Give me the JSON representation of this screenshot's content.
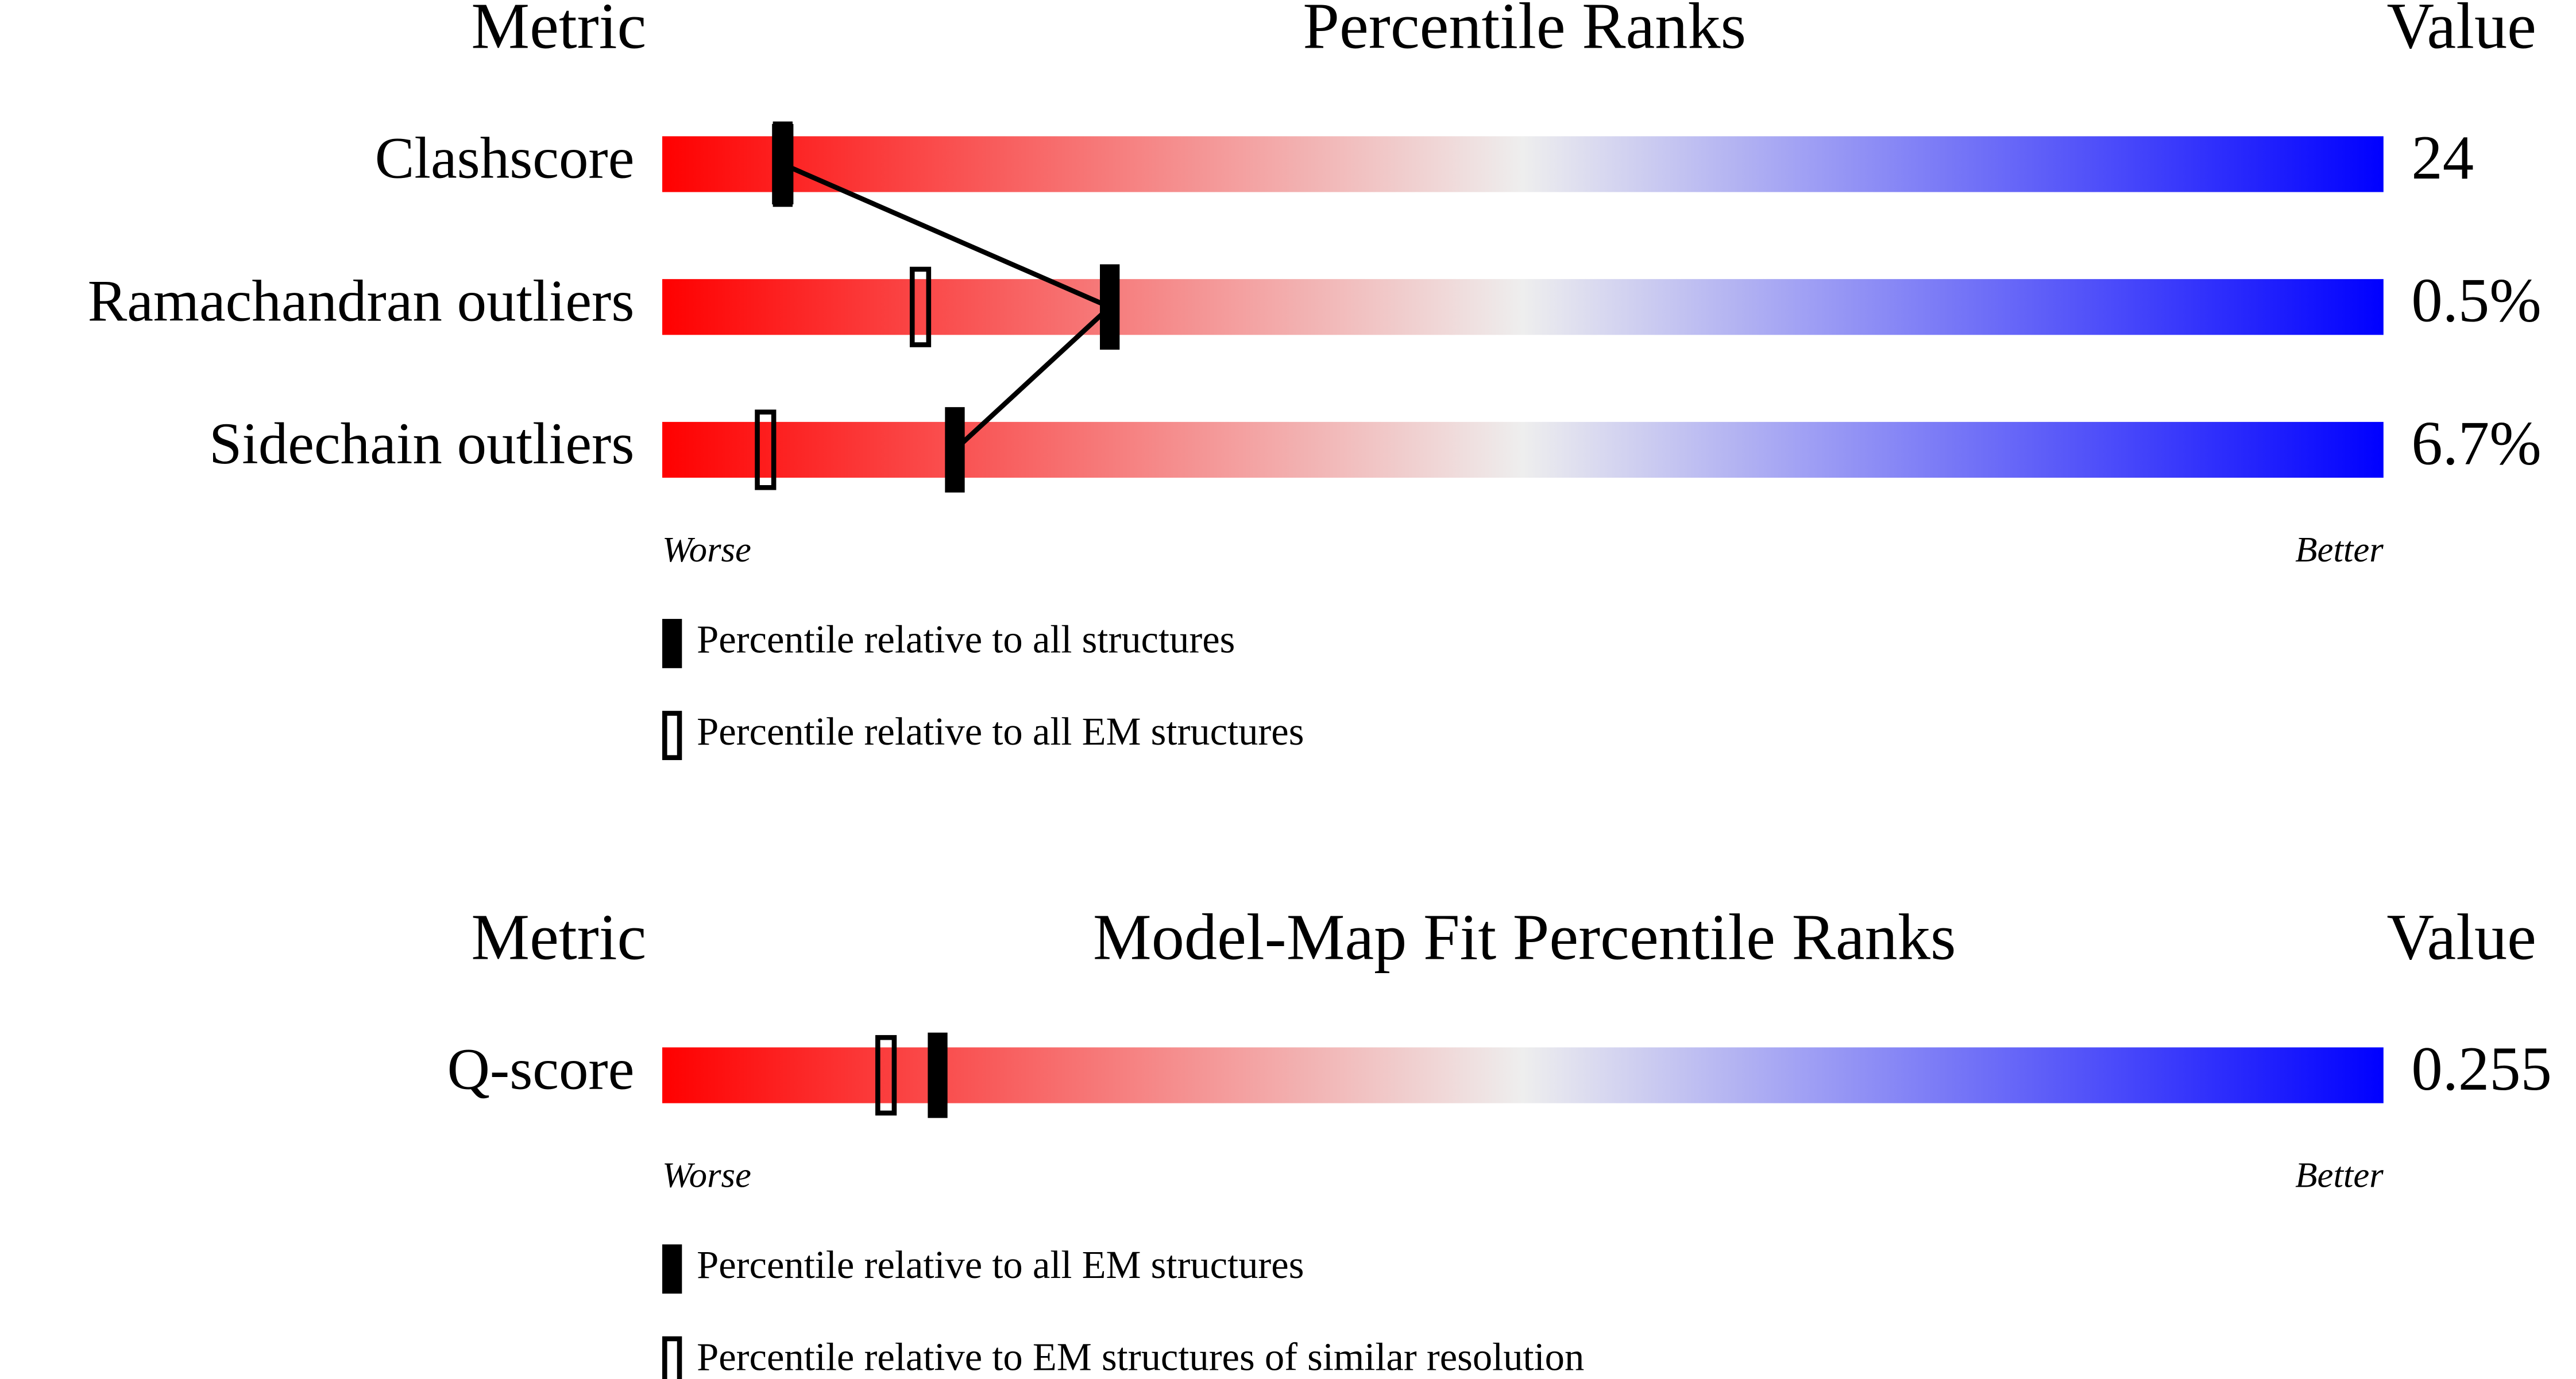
{
  "chart_data": [
    {
      "type": "percentile",
      "metric_header": "Metric",
      "title": "Percentile Ranks",
      "value_header": "Value",
      "categories": [
        "Clashscore",
        "Ramachandran outliers",
        "Sidechain outliers"
      ],
      "metric_values": [
        "24",
        "0.5%",
        "6.7%"
      ],
      "xlim": [
        0,
        100
      ],
      "gradient": [
        "#ff0000",
        "#eeeeee",
        "#0000ff"
      ],
      "worse_label": "Worse",
      "better_label": "Better",
      "series": [
        {
          "name": "Percentile relative to all structures",
          "style": "filled",
          "color": "#000000",
          "connected": true,
          "values": [
            7,
            26,
            17
          ]
        },
        {
          "name": "Percentile relative to all EM structures",
          "style": "open",
          "color": "#000000",
          "connected": false,
          "values": [
            7,
            15,
            6
          ]
        }
      ]
    },
    {
      "type": "percentile",
      "metric_header": "Metric",
      "title": "Model-Map Fit Percentile Ranks",
      "value_header": "Value",
      "categories": [
        "Q-score"
      ],
      "metric_values": [
        "0.255"
      ],
      "xlim": [
        0,
        100
      ],
      "gradient": [
        "#ff0000",
        "#eeeeee",
        "#0000ff"
      ],
      "worse_label": "Worse",
      "better_label": "Better",
      "series": [
        {
          "name": "Percentile relative to all EM structures",
          "style": "filled",
          "color": "#000000",
          "connected": true,
          "values": [
            16
          ]
        },
        {
          "name": "Percentile relative to EM structures of similar resolution",
          "style": "open",
          "color": "#000000",
          "connected": false,
          "values": [
            13
          ]
        }
      ]
    }
  ]
}
